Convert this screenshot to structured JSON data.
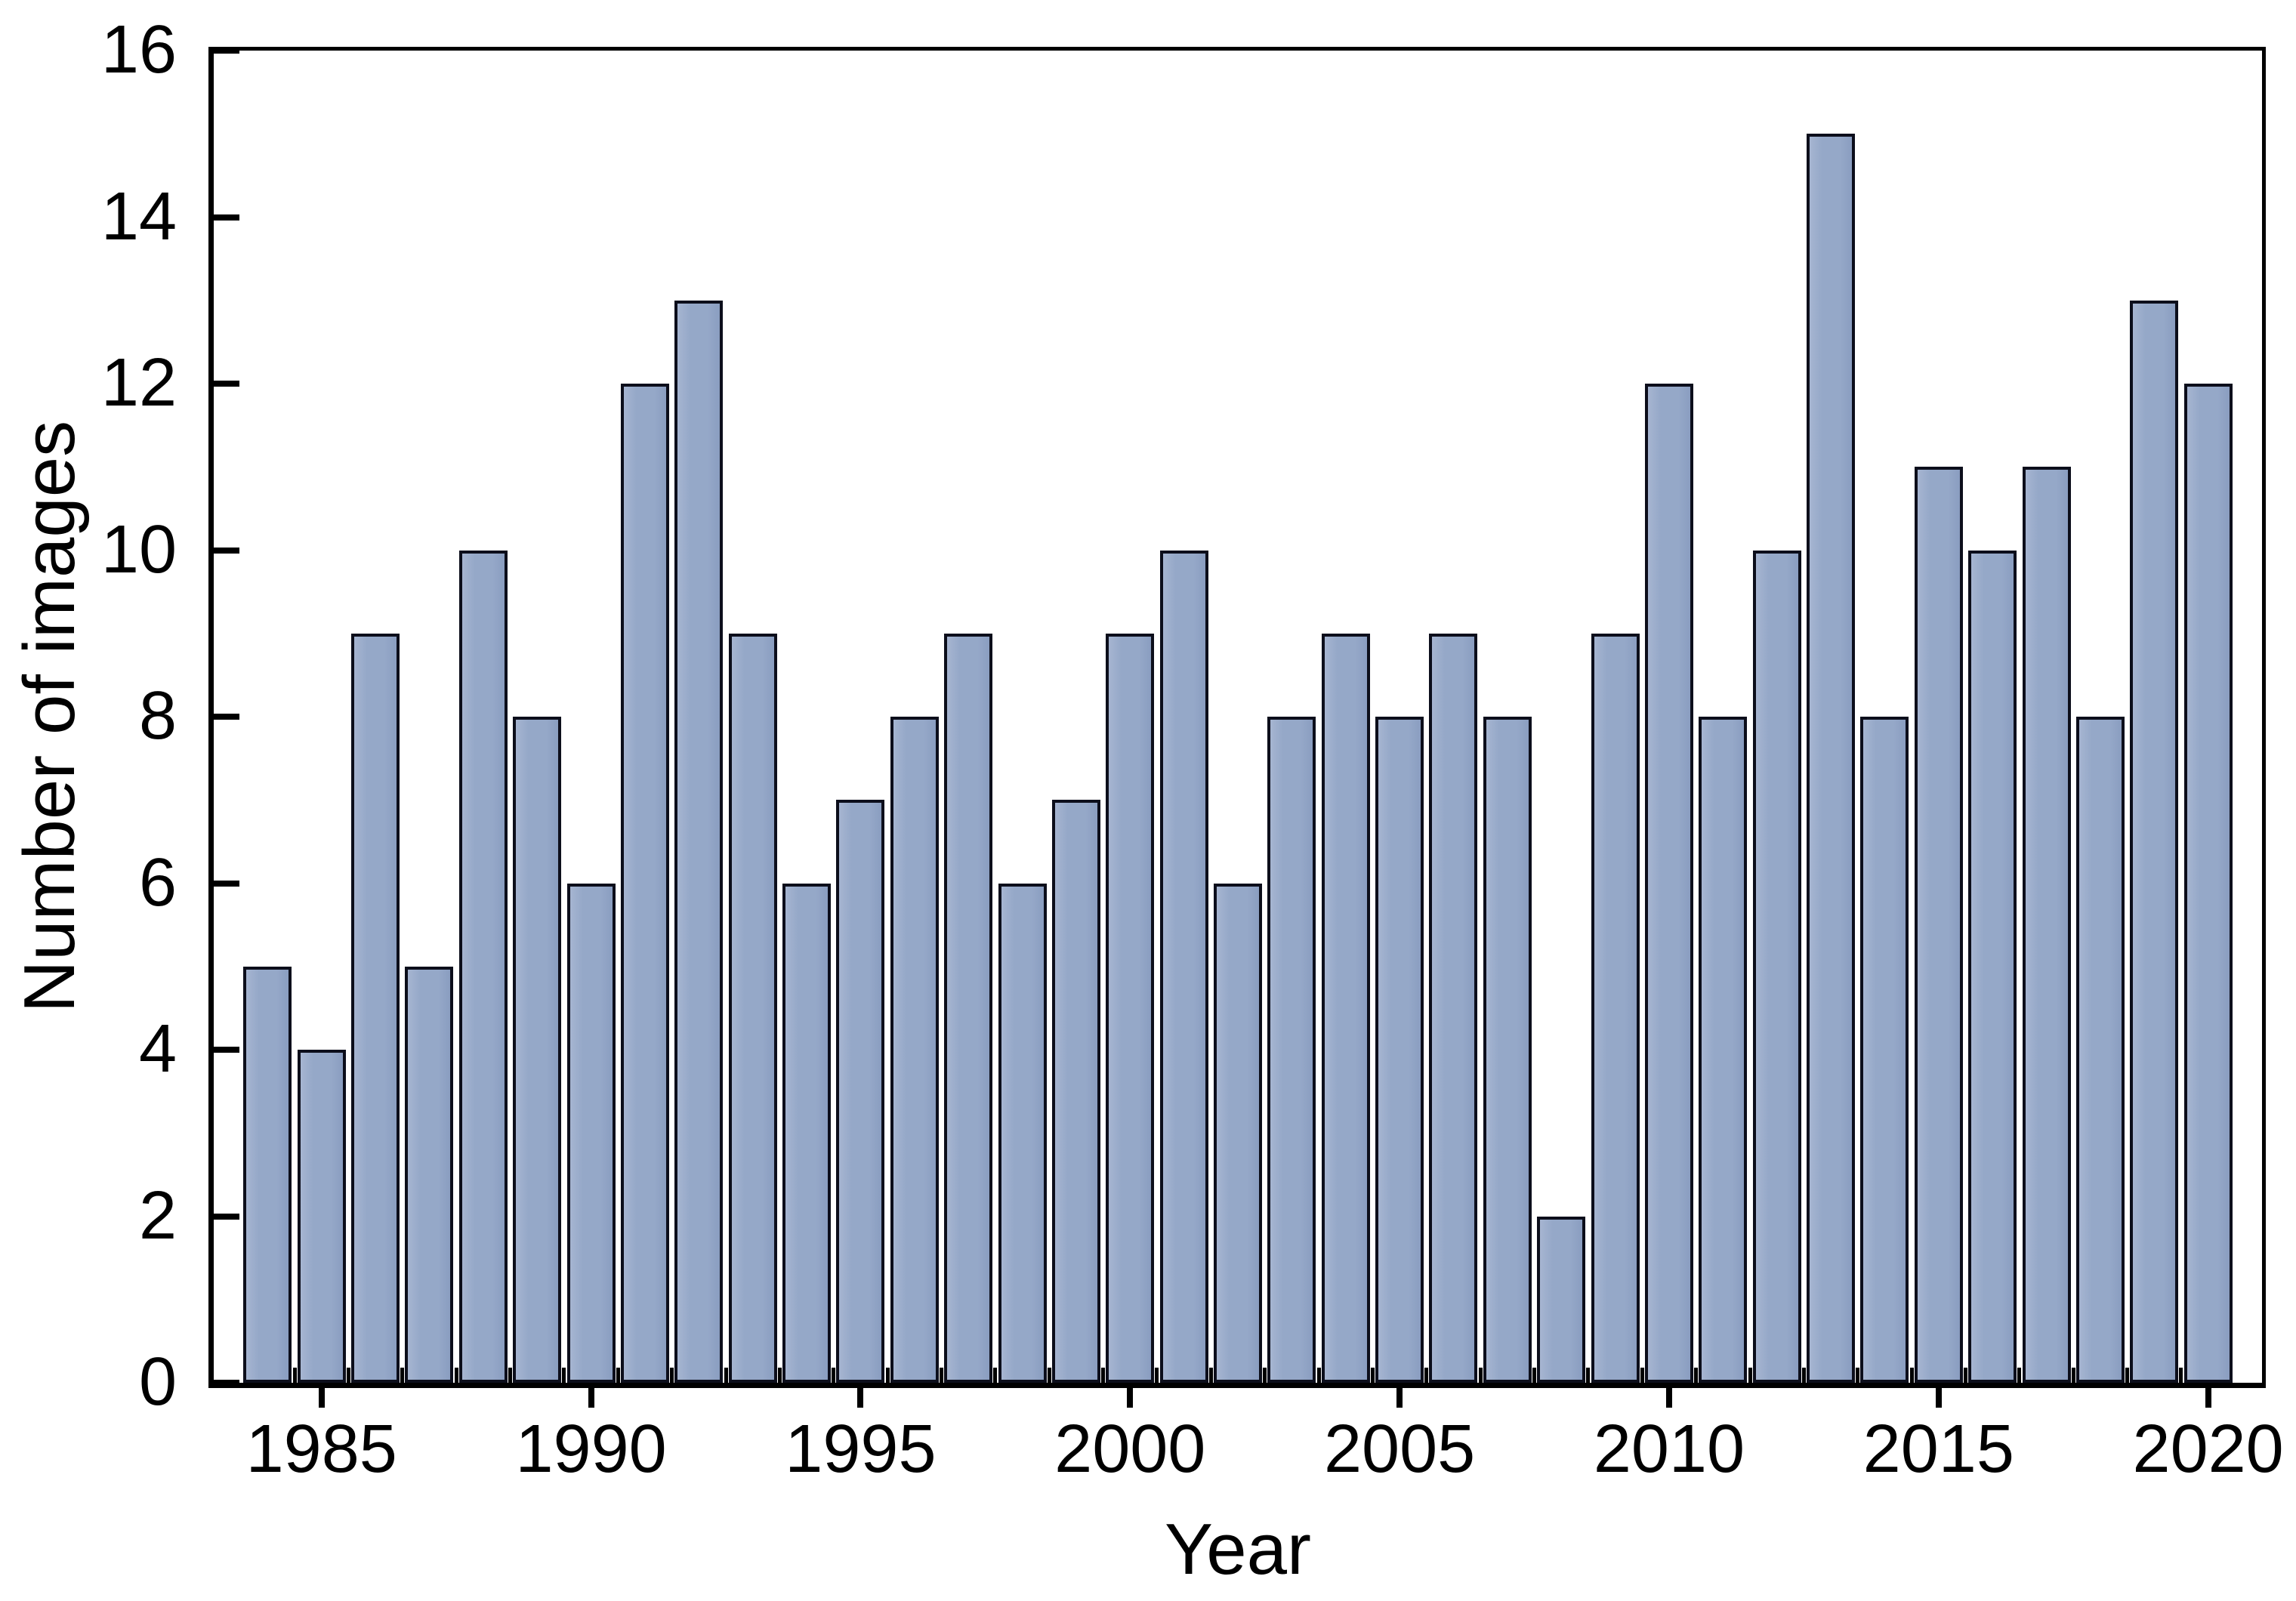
{
  "chart_data": {
    "type": "bar",
    "title": "",
    "xlabel": "Year",
    "ylabel": "Number of images",
    "categories": [
      1984,
      1985,
      1986,
      1987,
      1988,
      1989,
      1990,
      1991,
      1992,
      1993,
      1994,
      1995,
      1996,
      1997,
      1998,
      1999,
      2000,
      2001,
      2002,
      2003,
      2004,
      2005,
      2006,
      2007,
      2008,
      2009,
      2010,
      2011,
      2012,
      2013,
      2014,
      2015,
      2016,
      2017,
      2018,
      2019,
      2020
    ],
    "values": [
      5,
      4,
      9,
      5,
      10,
      8,
      6,
      12,
      13,
      9,
      6,
      7,
      8,
      9,
      6,
      7,
      9,
      10,
      6,
      8,
      9,
      8,
      9,
      8,
      2,
      9,
      12,
      8,
      10,
      15,
      8,
      11,
      10,
      11,
      8,
      13,
      12
    ],
    "ylim": [
      0,
      16
    ],
    "y_major_ticks": [
      0,
      2,
      4,
      6,
      8,
      10,
      12,
      14,
      16
    ],
    "x_major_ticks": [
      1985,
      1990,
      1995,
      2000,
      2005,
      2010,
      2015,
      2020
    ],
    "grid": false,
    "legend": "none",
    "bar_fill": "#95a8c8",
    "bar_stroke": "#0c0e1b",
    "axis_color": "#000000",
    "text_color": "#000000",
    "background": "#ffffff"
  }
}
